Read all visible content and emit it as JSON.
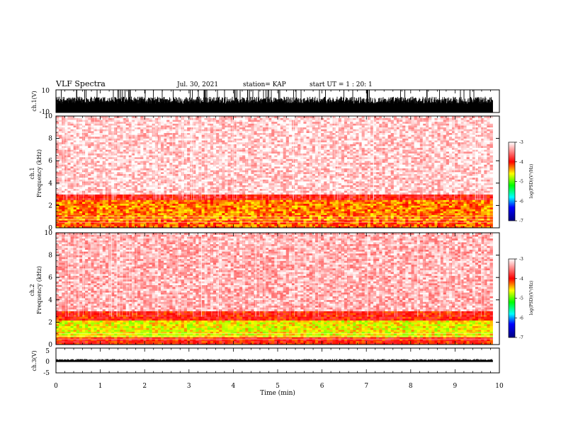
{
  "header": {
    "title": "VLF Spectra",
    "date": "Jul. 30, 2021",
    "station": "station= KAP",
    "start": "start UT =  1 : 20: 1"
  },
  "chart_data": [
    {
      "type": "line",
      "name": "ch1-waveform",
      "ylabel": "ch.1(V)",
      "ylim": [
        -10,
        10
      ],
      "yticks": [
        "10",
        "-10"
      ],
      "x_extent_min": [
        0,
        9.85
      ],
      "envelope": {
        "typical_min": -10,
        "typical_max": 4,
        "spike_max": 10
      }
    },
    {
      "type": "heatmap",
      "name": "ch1-spectrogram",
      "ylabel": "ch.1\nFrequency (kHz)",
      "ylim": [
        0,
        10
      ],
      "yticks": [
        "0",
        "2",
        "4",
        "6",
        "8",
        "10"
      ],
      "x_extent_min": [
        0,
        9.85
      ],
      "bands": [
        {
          "from_khz": 0.0,
          "to_khz": 0.7,
          "log_psd": -4.2
        },
        {
          "from_khz": 0.7,
          "to_khz": 2.5,
          "log_psd": -4.3
        },
        {
          "from_khz": 2.5,
          "to_khz": 3.0,
          "log_psd": -3.9
        },
        {
          "from_khz": 3.0,
          "to_khz": 10.0,
          "log_psd": -3.2
        }
      ],
      "colorbar": {
        "label": "log(PSD)(V²/Hz)",
        "range": [
          -7,
          -3
        ],
        "ticks": [
          "-3",
          "-4",
          "-5",
          "-6",
          "-7"
        ],
        "stops": [
          {
            "v": -7,
            "color": "#000080"
          },
          {
            "v": -6.3,
            "color": "#0000ff"
          },
          {
            "v": -5.8,
            "color": "#00ffff"
          },
          {
            "v": -5.2,
            "color": "#00ff00"
          },
          {
            "v": -4.6,
            "color": "#ffff00"
          },
          {
            "v": -4.0,
            "color": "#ff0000"
          },
          {
            "v": -3.0,
            "color": "#ffffff"
          }
        ]
      }
    },
    {
      "type": "heatmap",
      "name": "ch2-spectrogram",
      "ylabel": "ch.2\nFrequency (kHz)",
      "ylim": [
        0,
        10
      ],
      "yticks": [
        "0",
        "2",
        "4",
        "6",
        "8",
        "10"
      ],
      "x_extent_min": [
        0,
        9.85
      ],
      "bands": [
        {
          "from_khz": 0.0,
          "to_khz": 0.6,
          "log_psd": -4.0
        },
        {
          "from_khz": 0.6,
          "to_khz": 2.2,
          "log_psd": -4.6
        },
        {
          "from_khz": 2.2,
          "to_khz": 3.0,
          "log_psd": -4.0
        },
        {
          "from_khz": 3.0,
          "to_khz": 10.0,
          "log_psd": -3.3
        }
      ],
      "colorbar": {
        "label": "log(PSD)(V²/Hz)",
        "range": [
          -7,
          -3
        ],
        "ticks": [
          "-3",
          "-4",
          "-5",
          "-6",
          "-7"
        ]
      }
    },
    {
      "type": "line",
      "name": "ch3-waveform",
      "ylabel": "ch.3(V)",
      "ylim": [
        -5,
        5
      ],
      "yticks": [
        "5",
        "0",
        "-5"
      ],
      "x_extent_min": [
        0,
        9.85
      ],
      "envelope": {
        "typical_min": -0.6,
        "typical_max": 0.6
      }
    }
  ],
  "xaxis": {
    "label": "Time (min)",
    "range": [
      0,
      10
    ],
    "ticks": [
      "0",
      "1",
      "2",
      "3",
      "4",
      "5",
      "6",
      "7",
      "8",
      "9",
      "10"
    ]
  }
}
